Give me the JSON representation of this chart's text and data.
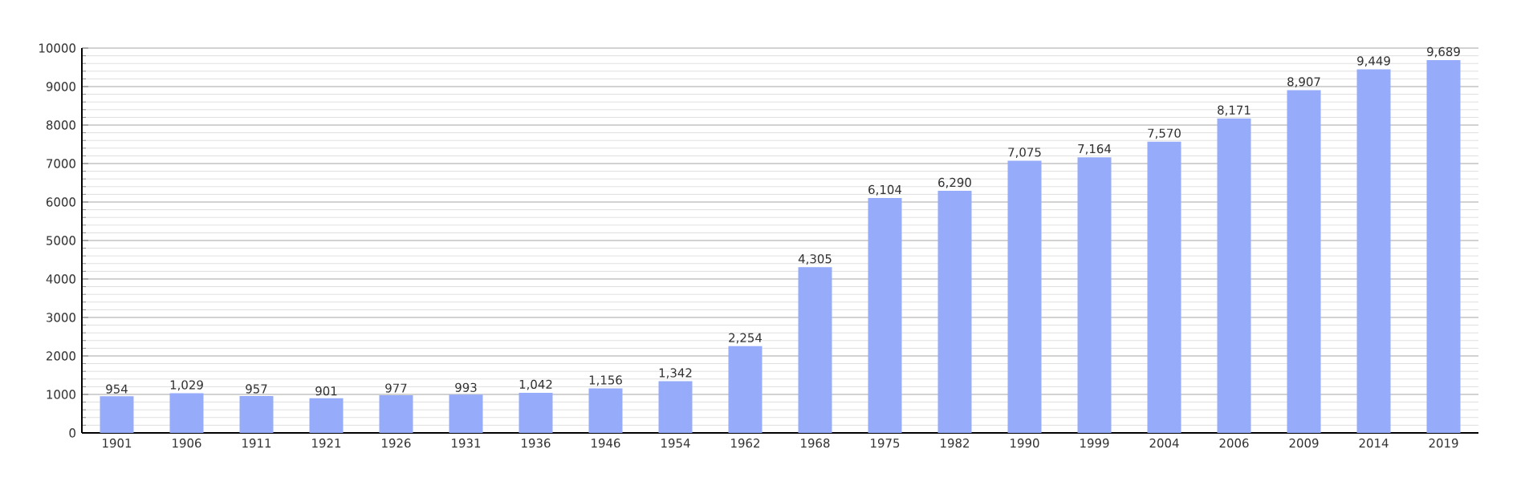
{
  "chart_data": {
    "type": "bar",
    "categories": [
      "1901",
      "1906",
      "1911",
      "1921",
      "1926",
      "1931",
      "1936",
      "1946",
      "1954",
      "1962",
      "1968",
      "1975",
      "1982",
      "1990",
      "1999",
      "2004",
      "2006",
      "2009",
      "2014",
      "2019"
    ],
    "values": [
      954,
      1029,
      957,
      901,
      977,
      993,
      1042,
      1156,
      1342,
      2254,
      4305,
      6104,
      6290,
      7075,
      7164,
      7570,
      8171,
      8907,
      9449,
      9689
    ],
    "value_labels": [
      "954",
      "1,029",
      "957",
      "901",
      "977",
      "993",
      "1,042",
      "1,156",
      "1,342",
      "2,254",
      "4,305",
      "6,104",
      "6,290",
      "7,075",
      "7,164",
      "7,570",
      "8,171",
      "8,907",
      "9,449",
      "9,689"
    ],
    "color": "#96abfa",
    "ylim": [
      0,
      10000
    ],
    "yticks": [
      0,
      1000,
      2000,
      3000,
      4000,
      5000,
      6000,
      7000,
      8000,
      9000,
      10000
    ],
    "grid": "y"
  }
}
